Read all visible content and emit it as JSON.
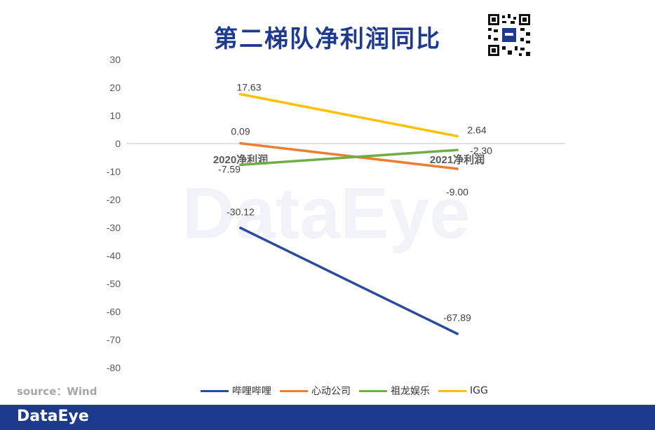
{
  "title": "第二梯队净利润同比",
  "source": "source：Wind",
  "watermark": "DataEye",
  "footer_logo": "DataEye",
  "chart_data": {
    "type": "line",
    "title": "第二梯队净利润同比",
    "categories": [
      "2020净利润",
      "2021净利润"
    ],
    "series": [
      {
        "name": "哔哩哔哩",
        "color": "#2b4c9c",
        "values": [
          -30.12,
          -67.89
        ],
        "labels": [
          "-30.12",
          "-67.89"
        ]
      },
      {
        "name": "心动公司",
        "color": "#ed7d31",
        "values": [
          0.09,
          -9.0
        ],
        "labels": [
          "0.09",
          "-9.00"
        ]
      },
      {
        "name": "祖龙娱乐",
        "color": "#70ad47",
        "values": [
          -7.59,
          -2.3
        ],
        "labels": [
          "-7.59",
          "-2.30"
        ]
      },
      {
        "name": "IGG",
        "color": "#ffc000",
        "values": [
          17.63,
          2.64
        ],
        "labels": [
          "17.63",
          "2.64"
        ]
      }
    ],
    "ylim": [
      -80,
      30
    ],
    "yticks": [
      "30",
      "20",
      "10",
      "0",
      "-10",
      "-20",
      "-30",
      "-40",
      "-50",
      "-60",
      "-70",
      "-80"
    ],
    "xlabel": "",
    "ylabel": "",
    "grid": false,
    "legend": "bottom"
  }
}
